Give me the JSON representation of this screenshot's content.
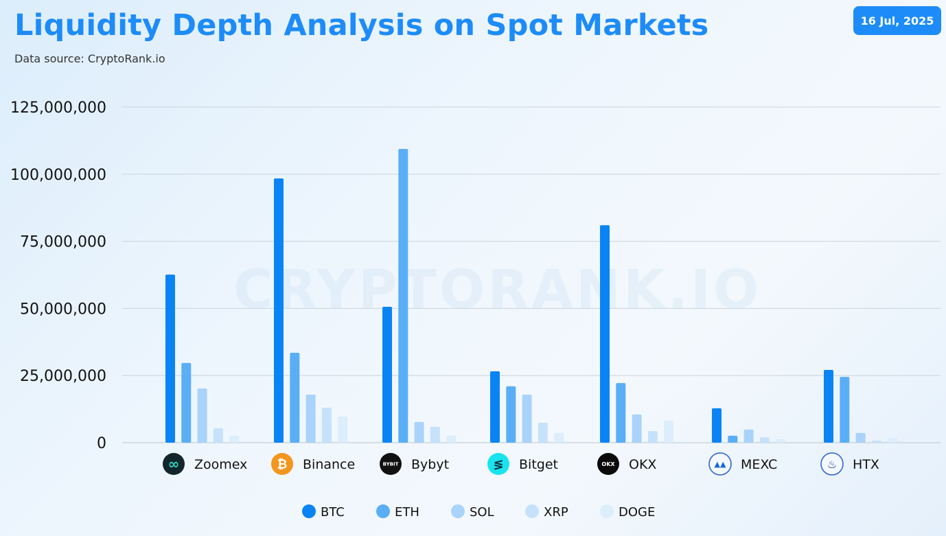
{
  "title": "Liquidity Depth Analysis on Spot Markets",
  "source": "Data source: CryptoRank.io",
  "date": "16 Jul, 2025",
  "watermark": "CRYPTORANK.IO",
  "chart_data": {
    "type": "bar",
    "categories": [
      "Zoomex",
      "Binance",
      "Bybyt",
      "Bitget",
      "OKX",
      "MEXC",
      "HTX"
    ],
    "category_icons": [
      "zoomex-logo-icon",
      "binance-logo-icon",
      "bybit-logo-icon",
      "bitget-logo-icon",
      "okx-logo-icon",
      "mexc-logo-icon",
      "htx-logo-icon"
    ],
    "series": [
      {
        "name": "BTC",
        "color": "#0a84f5",
        "values": [
          62600000,
          98400000,
          50600000,
          26600000,
          81000000,
          12800000,
          27100000
        ]
      },
      {
        "name": "ETH",
        "color": "#5aaef6",
        "values": [
          29700000,
          33500000,
          109400000,
          21000000,
          22200000,
          2600000,
          24500000
        ]
      },
      {
        "name": "SOL",
        "color": "#a9d3fa",
        "values": [
          20200000,
          17900000,
          7700000,
          17900000,
          10500000,
          4900000,
          3600000
        ]
      },
      {
        "name": "XRP",
        "color": "#c6e2fb",
        "values": [
          5400000,
          13000000,
          5900000,
          7400000,
          4300000,
          2000000,
          800000
        ]
      },
      {
        "name": "DOGE",
        "color": "#dcedfc",
        "values": [
          2600000,
          9700000,
          2600000,
          3600000,
          8200000,
          1300000,
          1800000
        ]
      }
    ],
    "yticks": [
      "0",
      "25,000,000",
      "50,000,000",
      "75,000,000",
      "100,000,000",
      "125,000,000"
    ],
    "ylim": [
      0,
      125000000
    ],
    "grid": true,
    "legend": "bottom-center",
    "xlabel": "",
    "ylabel": ""
  }
}
